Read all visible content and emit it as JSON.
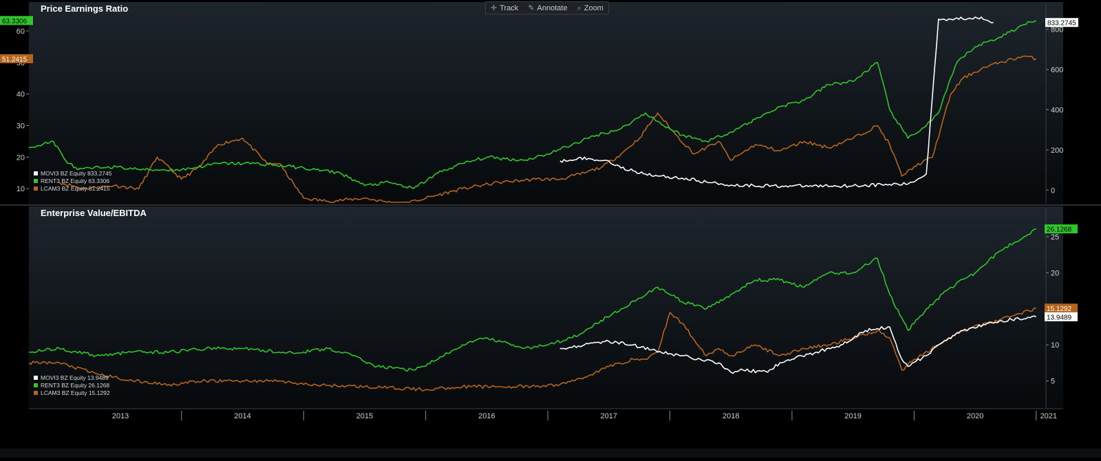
{
  "toolbar": {
    "track": "Track",
    "track_icon": "crosshair-icon",
    "annotate": "Annotate",
    "annotate_icon": "pencil-icon",
    "zoom": "Zoom",
    "zoom_icon": "magnifier-icon"
  },
  "colors": {
    "movi3": "#ffffff",
    "rent3": "#2fc52b",
    "lcam3": "#b5651d",
    "background": "#000000",
    "panel_top": "#1d252d",
    "axis_text": "#cfcfcf"
  },
  "x_axis": {
    "labels": [
      "2013",
      "2014",
      "2015",
      "2016",
      "2017",
      "2018",
      "2019",
      "2020",
      "2021"
    ]
  },
  "chart_data": [
    {
      "type": "line",
      "title": "Price Earnings Ratio",
      "x_range": [
        "2012-09",
        "2021-02"
      ],
      "y_left": {
        "ticks": [
          10,
          20,
          30,
          40,
          50,
          60
        ],
        "range": [
          7,
          65
        ]
      },
      "y_right": {
        "ticks": [
          0,
          200,
          400,
          600,
          800
        ],
        "range": [
          -40,
          870
        ]
      },
      "last_value_tags": [
        {
          "series": "RENT3 BZ Equity",
          "text": "63.3306",
          "side": "left"
        },
        {
          "series": "LCAM3 BZ Equity",
          "text": "51.2415",
          "side": "left"
        },
        {
          "series": "MOVI3 BZ Equity",
          "text": "833.2745",
          "side": "right"
        }
      ],
      "legend": [
        {
          "name": "MOVI3 BZ Equity",
          "value": "833.2745"
        },
        {
          "name": "RENT3 BZ Equity",
          "value": "63.3306"
        },
        {
          "name": "LCAM3 BZ Equity",
          "value": "51.2415"
        }
      ],
      "series": [
        {
          "name": "RENT3 BZ Equity",
          "axis": "left",
          "x": [
            2012.75,
            2012.95,
            2013.05,
            2013.15,
            2013.4,
            2013.7,
            2014.0,
            2014.3,
            2014.6,
            2014.9,
            2015.1,
            2015.3,
            2015.5,
            2015.7,
            2015.9,
            2016.1,
            2016.3,
            2016.5,
            2016.8,
            2017.0,
            2017.2,
            2017.4,
            2017.6,
            2017.8,
            2017.95,
            2018.1,
            2018.3,
            2018.5,
            2018.7,
            2018.9,
            2019.1,
            2019.3,
            2019.5,
            2019.7,
            2019.8,
            2019.95,
            2020.1,
            2020.2,
            2020.35,
            2020.5,
            2020.7,
            2020.9,
            2021.0
          ],
          "values": [
            23,
            25,
            19,
            16,
            17,
            16,
            16,
            18,
            18,
            17,
            16,
            15,
            11,
            12,
            10,
            15,
            18,
            20,
            19,
            21,
            24,
            27,
            29,
            34,
            30,
            27,
            25,
            28,
            32,
            36,
            38,
            43,
            44,
            50,
            35,
            26,
            30,
            34,
            50,
            55,
            58,
            62,
            63.3
          ]
        },
        {
          "name": "LCAM3 BZ Equity",
          "axis": "left",
          "x": [
            2013.0,
            2013.2,
            2013.45,
            2013.65,
            2013.8,
            2014.0,
            2014.15,
            2014.3,
            2014.5,
            2014.7,
            2014.8,
            2015.0,
            2015.2,
            2015.5,
            2015.8,
            2016.0,
            2016.3,
            2016.6,
            2016.9,
            2017.1,
            2017.3,
            2017.45,
            2017.6,
            2017.75,
            2017.9,
            2018.05,
            2018.2,
            2018.4,
            2018.5,
            2018.7,
            2018.9,
            2019.1,
            2019.3,
            2019.5,
            2019.7,
            2019.8,
            2019.9,
            2020.0,
            2020.15,
            2020.3,
            2020.4,
            2020.55,
            2020.7,
            2020.9,
            2021.0
          ],
          "values": [
            12,
            10,
            11,
            10,
            20,
            13,
            17,
            24,
            26,
            18,
            18,
            7,
            6,
            7,
            5,
            7,
            10,
            12,
            13,
            13,
            15,
            17,
            21,
            26,
            34,
            27,
            21,
            25,
            19,
            24,
            22,
            25,
            23,
            26,
            30,
            24,
            14,
            17,
            20,
            40,
            45,
            48,
            50,
            52,
            51.2
          ]
        },
        {
          "name": "MOVI3 BZ Equity",
          "axis": "right",
          "x": [
            2017.1,
            2017.25,
            2017.4,
            2017.5,
            2017.6,
            2017.7,
            2017.9,
            2018.1,
            2018.3,
            2018.5,
            2019.0,
            2019.5,
            2019.8,
            2019.95,
            2020.05,
            2020.1,
            2020.2,
            2020.3,
            2020.45,
            2020.55,
            2020.65
          ],
          "values": [
            145,
            160,
            150,
            145,
            110,
            95,
            70,
            60,
            40,
            25,
            20,
            22,
            28,
            30,
            60,
            80,
            850,
            850,
            855,
            860,
            833.3
          ]
        }
      ]
    },
    {
      "type": "line",
      "title": "Enterprise Value/EBITDA",
      "x_range": [
        "2012-09",
        "2021-02"
      ],
      "y_right": {
        "ticks": [
          5,
          10,
          15,
          20,
          25
        ],
        "range": [
          2,
          27.5
        ]
      },
      "last_value_tags": [
        {
          "series": "RENT3 BZ Equity",
          "text": "26.1268",
          "side": "right"
        },
        {
          "series": "LCAM3 BZ Equity",
          "text": "15.1292",
          "side": "right"
        },
        {
          "series": "MOVI3 BZ Equity",
          "text": "13.9489",
          "side": "right"
        }
      ],
      "legend": [
        {
          "name": "MOVI3 BZ Equity",
          "value": "13.9489"
        },
        {
          "name": "RENT3 BZ Equity",
          "value": "26.1268"
        },
        {
          "name": "LCAM3 BZ Equity",
          "value": "15.1292"
        }
      ],
      "series": [
        {
          "name": "RENT3 BZ Equity",
          "x": [
            2012.75,
            2013.0,
            2013.3,
            2013.6,
            2013.9,
            2014.2,
            2014.5,
            2014.8,
            2015.0,
            2015.2,
            2015.4,
            2015.6,
            2015.9,
            2016.1,
            2016.3,
            2016.5,
            2016.8,
            2017.0,
            2017.2,
            2017.4,
            2017.6,
            2017.75,
            2017.9,
            2018.1,
            2018.3,
            2018.5,
            2018.7,
            2018.9,
            2019.1,
            2019.3,
            2019.5,
            2019.7,
            2019.8,
            2019.95,
            2020.1,
            2020.3,
            2020.5,
            2020.7,
            2020.9,
            2021.0
          ],
          "values": [
            9,
            9.5,
            8.5,
            9,
            9,
            9.5,
            9.5,
            9,
            9,
            9.5,
            8.5,
            7,
            6.5,
            8,
            10,
            11,
            9.5,
            10,
            11,
            13,
            15,
            16.5,
            18,
            16,
            15,
            17,
            19,
            19,
            18,
            20,
            20,
            22,
            17,
            12,
            15,
            18,
            20,
            23,
            25,
            26.1
          ]
        },
        {
          "name": "LCAM3 BZ Equity",
          "x": [
            2012.75,
            2013.0,
            2013.3,
            2013.6,
            2013.9,
            2014.2,
            2014.5,
            2014.8,
            2015.0,
            2015.5,
            2016.0,
            2016.3,
            2016.6,
            2016.9,
            2017.1,
            2017.3,
            2017.5,
            2017.7,
            2017.8,
            2017.9,
            2018.0,
            2018.1,
            2018.3,
            2018.4,
            2018.5,
            2018.7,
            2018.9,
            2019.1,
            2019.3,
            2019.5,
            2019.7,
            2019.8,
            2019.9,
            2020.0,
            2020.2,
            2020.4,
            2020.6,
            2020.8,
            2021.0
          ],
          "values": [
            7.5,
            7.5,
            6,
            5,
            4.5,
            5,
            5,
            5,
            4.5,
            4.2,
            3.8,
            4.2,
            4.2,
            4.2,
            4.5,
            5.5,
            7,
            8,
            8,
            9,
            14.5,
            13,
            8.5,
            9.5,
            8.5,
            10,
            8.5,
            9.5,
            10,
            11,
            12,
            11,
            6.5,
            8,
            10,
            12,
            13,
            14,
            15.1
          ]
        },
        {
          "name": "MOVI3 BZ Equity",
          "x": [
            2017.1,
            2017.3,
            2017.5,
            2017.7,
            2017.9,
            2018.1,
            2018.25,
            2018.4,
            2018.5,
            2018.6,
            2018.8,
            2018.9,
            2019.0,
            2019.2,
            2019.4,
            2019.6,
            2019.8,
            2019.9,
            2019.95,
            2020.1,
            2020.2,
            2020.4,
            2020.6,
            2020.8,
            2021.0
          ],
          "values": [
            9.5,
            10,
            10.5,
            10,
            9,
            8.5,
            8,
            7.5,
            6.2,
            6.5,
            6.2,
            7.5,
            8,
            9,
            10,
            12,
            12.5,
            8,
            7,
            8.5,
            10,
            12,
            13,
            13.5,
            13.9
          ]
        }
      ]
    }
  ]
}
